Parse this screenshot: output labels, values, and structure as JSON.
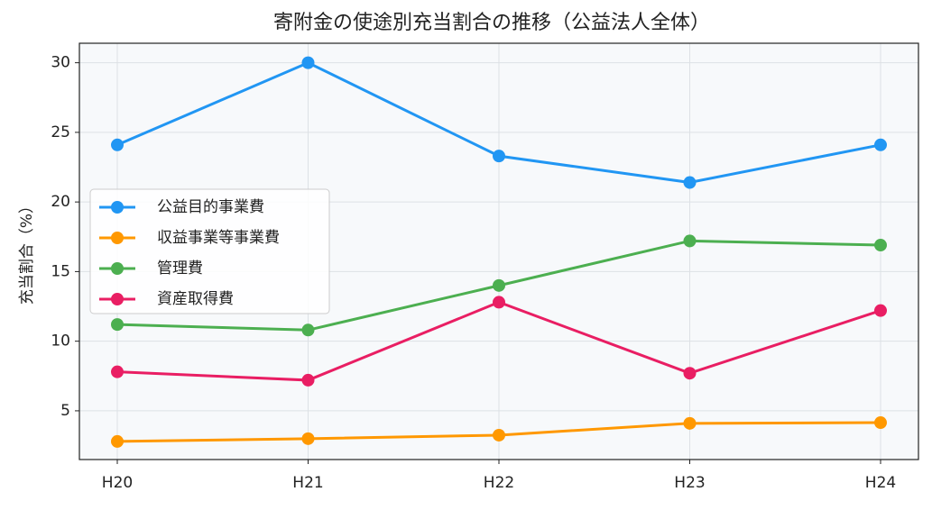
{
  "chart_data": {
    "type": "line",
    "title": "寄附金の使途別充当割合の推移（公益法人全体）",
    "y_label": "充当割合（%）",
    "categories": [
      "H20",
      "H21",
      "H22",
      "H23",
      "H24"
    ],
    "series": [
      {
        "name": "公益目的事業費",
        "color": "#2196f3",
        "values": [
          24.1,
          30.0,
          23.3,
          21.4,
          24.1
        ]
      },
      {
        "name": "収益事業等事業費",
        "color": "#ff9800",
        "values": [
          2.8,
          3.0,
          3.25,
          4.1,
          4.15
        ]
      },
      {
        "name": "管理費",
        "color": "#4caf50",
        "values": [
          11.2,
          10.8,
          14.0,
          17.2,
          16.9
        ]
      },
      {
        "name": "資産取得費",
        "color": "#e91e63",
        "values": [
          7.8,
          7.2,
          12.8,
          7.7,
          12.2
        ]
      }
    ],
    "ylim": [
      1.5,
      31.4
    ],
    "yticks": [
      5,
      10,
      15,
      20,
      25,
      30
    ],
    "grid": true,
    "legend": "left"
  }
}
